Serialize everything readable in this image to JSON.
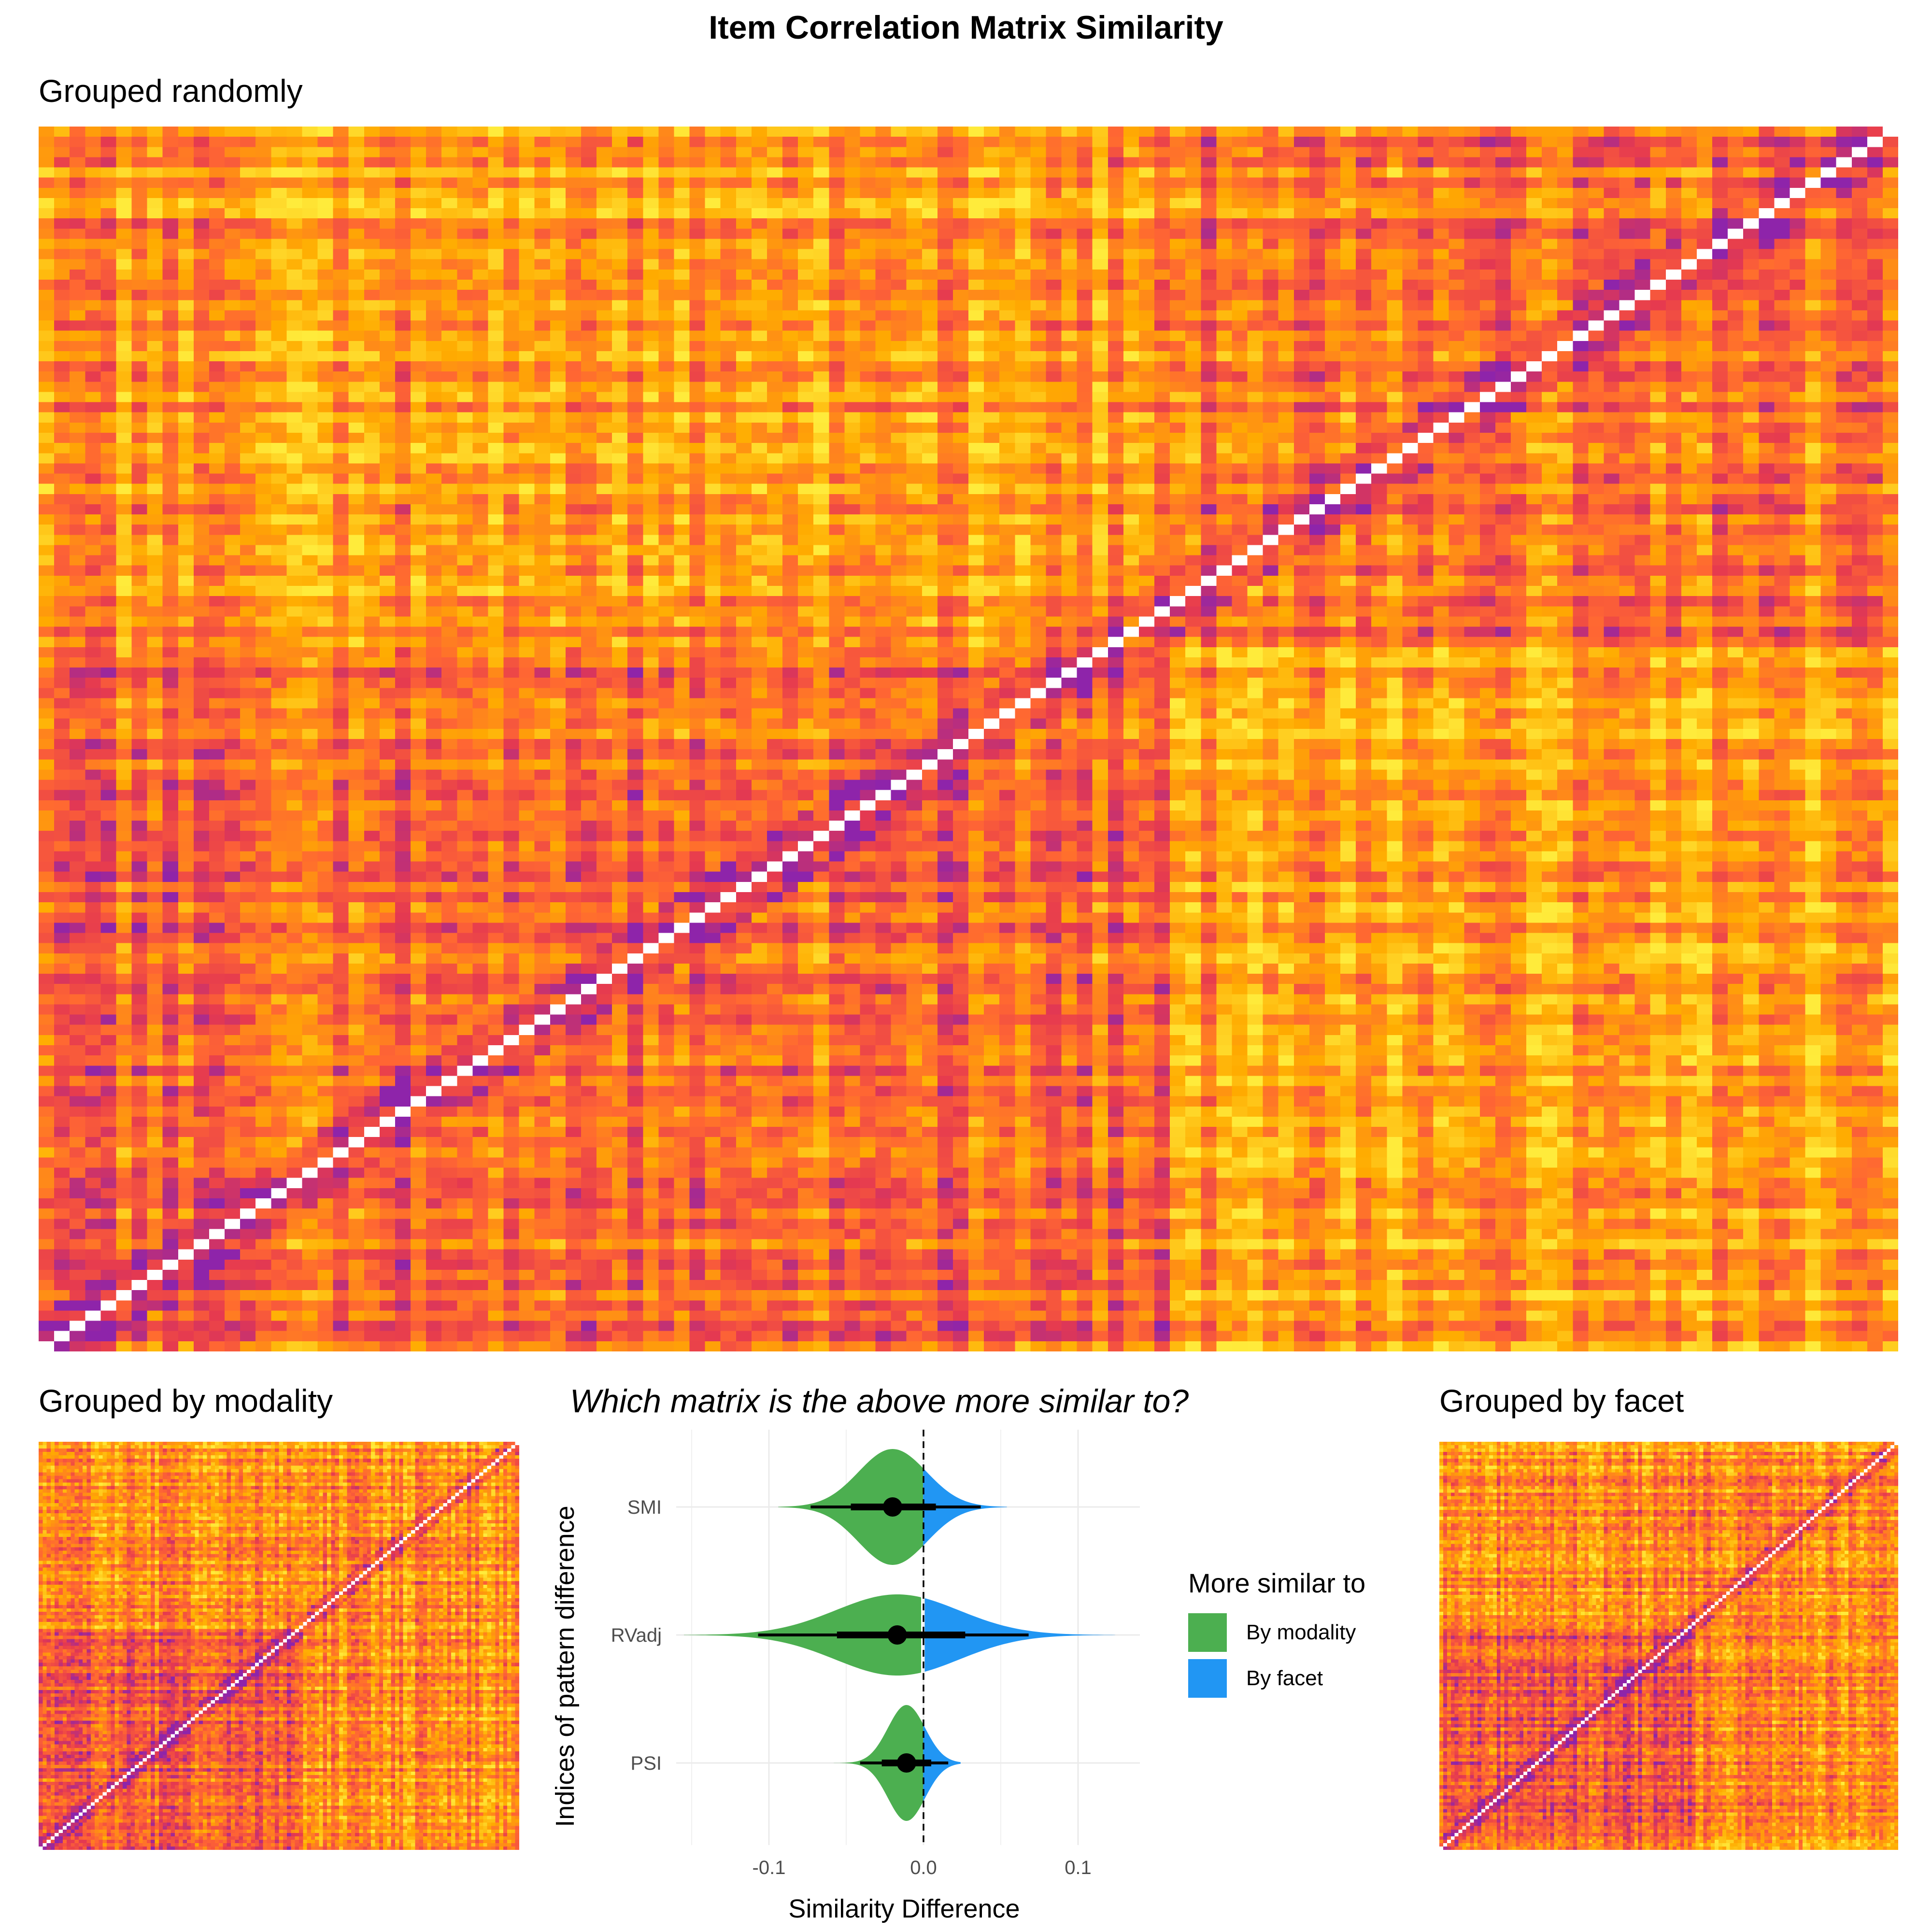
{
  "title": "Item Correlation Matrix Similarity",
  "panels": {
    "random": {
      "title": "Grouped randomly"
    },
    "modality": {
      "title": "Grouped by modality"
    },
    "facet": {
      "title": "Grouped by facet"
    }
  },
  "question": "Which matrix is the above more similar to?",
  "colors": {
    "modality": "#4CAF50",
    "facet": "#2196F3",
    "heat_low": "#FFEB3B",
    "heat_mid": "#FF6633",
    "heat_high": "#8E24AA"
  },
  "legend": {
    "title": "More similar to",
    "items": [
      {
        "label": "By modality",
        "color": "#4CAF50"
      },
      {
        "label": "By facet",
        "color": "#2196F3"
      }
    ]
  },
  "chart_data": [
    {
      "type": "heatmap",
      "title": "Grouped randomly",
      "n_items": 120,
      "diagonal": "white",
      "color_scale": [
        "#FFEB3B",
        "#FFA000",
        "#FF6633",
        "#E53950",
        "#8E24AA"
      ]
    },
    {
      "type": "heatmap",
      "title": "Grouped by modality",
      "n_items": 120,
      "diagonal": "white"
    },
    {
      "type": "heatmap",
      "title": "Grouped by facet",
      "n_items": 120,
      "diagonal": "white"
    },
    {
      "type": "violin",
      "xlabel": "Similarity Difference",
      "ylabel": "Indices of pattern difference",
      "categories": [
        "SMI",
        "RVadj",
        "PSI"
      ],
      "xlim": [
        -0.16,
        0.14
      ],
      "xticks": [
        {
          "v": -0.1,
          "label": "-0.1"
        },
        {
          "v": 0.0,
          "label": "0.0"
        },
        {
          "v": 0.1,
          "label": "0.1"
        }
      ],
      "reference_line": 0,
      "grid": true,
      "series": [
        {
          "name": "SMI",
          "point": -0.02,
          "q66": [
            -0.047,
            0.008
          ],
          "q95": [
            -0.073,
            0.037
          ],
          "range": [
            -0.094,
            0.054
          ],
          "peak_density": 1.0,
          "sd": 0.022
        },
        {
          "name": "RVadj",
          "point": -0.017,
          "q66": [
            -0.056,
            0.027
          ],
          "q95": [
            -0.107,
            0.068
          ],
          "range": [
            -0.155,
            0.124
          ],
          "peak_density": 0.7,
          "sd": 0.04
        },
        {
          "name": "PSI",
          "point": -0.011,
          "q66": [
            -0.027,
            0.005
          ],
          "q95": [
            -0.041,
            0.016
          ],
          "range": [
            -0.059,
            0.024
          ],
          "peak_density": 1.0,
          "sd": 0.012
        }
      ]
    }
  ]
}
